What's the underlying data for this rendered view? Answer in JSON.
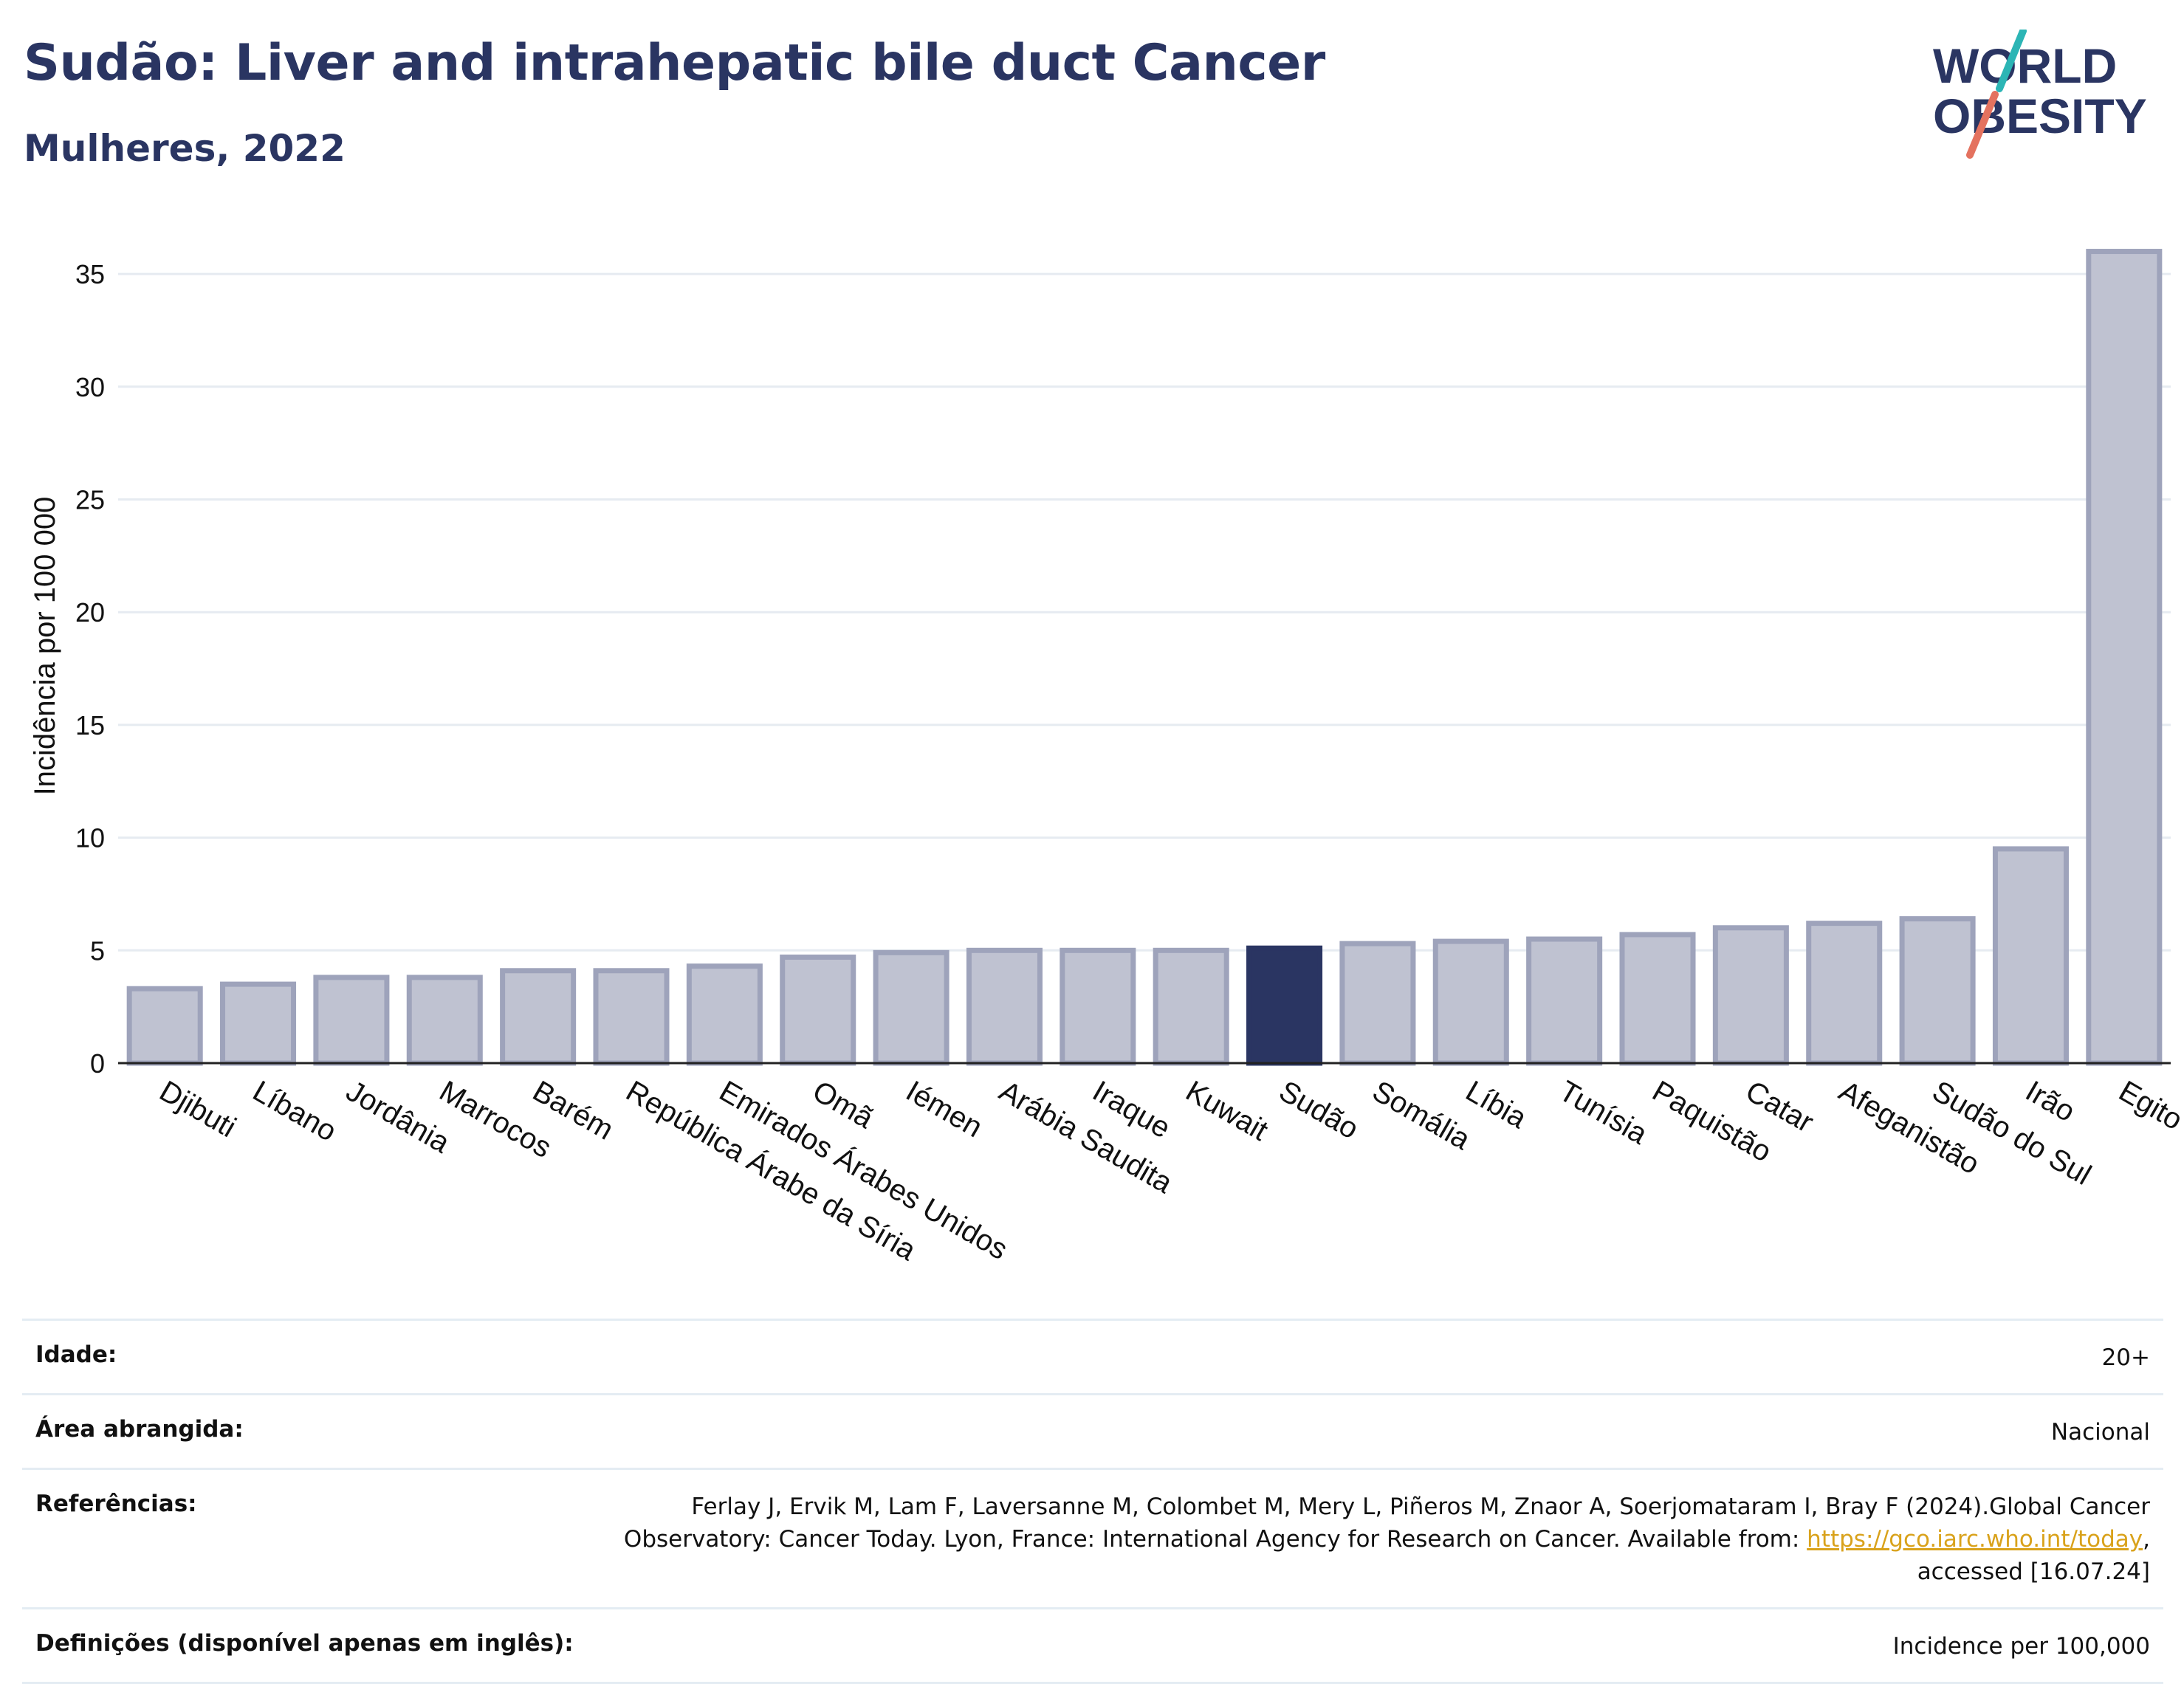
{
  "title": "Sudão: Liver and intrahepatic bile duct Cancer",
  "subtitle": "Mulheres, 2022",
  "logo": {
    "line1": "WORLD",
    "line2": "OBESITY",
    "text_color": "#2a3562",
    "slash_teal": "#2cb5b5",
    "slash_coral": "#e4725f"
  },
  "colors": {
    "bar": "#bfc2d1",
    "bar_edge": "#9ea3bb",
    "highlight": "#2a3562",
    "grid": "#e6ebf1",
    "axis": "#222222",
    "text": "#2a3562",
    "link": "#d9a21b"
  },
  "chart_data": {
    "type": "bar",
    "categories": [
      "Djibuti",
      "Líbano",
      "Jordânia",
      "Marrocos",
      "Barém",
      "República Árabe da Síria",
      "Emirados Árabes Unidos",
      "Omã",
      "Iémen",
      "Arábia Saudita",
      "Iraque",
      "Kuwait",
      "Sudão",
      "Somália",
      "Líbia",
      "Tunísia",
      "Paquistão",
      "Catar",
      "Afeganistão",
      "Sudão do Sul",
      "Irão",
      "Egito"
    ],
    "values": [
      3.3,
      3.5,
      3.8,
      3.8,
      4.1,
      4.1,
      4.3,
      4.7,
      4.9,
      5.0,
      5.0,
      5.0,
      5.1,
      5.3,
      5.4,
      5.5,
      5.7,
      6.0,
      6.2,
      6.4,
      9.5,
      36.0
    ],
    "highlight": "Sudão",
    "ylabel": "Incidência por 100 000",
    "xlabel": "",
    "ylim": [
      0,
      37
    ],
    "yticks": [
      0,
      5,
      10,
      15,
      20,
      25,
      30,
      35
    ],
    "grid": true
  },
  "meta": {
    "age_label": "Idade:",
    "age_value": "20+",
    "area_label": "Área abrangida:",
    "area_value": "Nacional",
    "ref_label": "Referências:",
    "ref_text_1": "Ferlay J, Ervik M, Lam F, Laversanne M, Colombet M, Mery L, Piñeros M, Znaor A, Soerjomataram I, Bray F (2024).Global Cancer Observatory: Cancer Today. Lyon, France: International Agency for Research on Cancer. Available from: ",
    "ref_link": "https://gco.iarc.who.int/today",
    "ref_text_2": ", accessed [16.07.24]",
    "def_label": "Definições (disponível apenas em inglês):",
    "def_value": "Incidence per 100,000"
  }
}
